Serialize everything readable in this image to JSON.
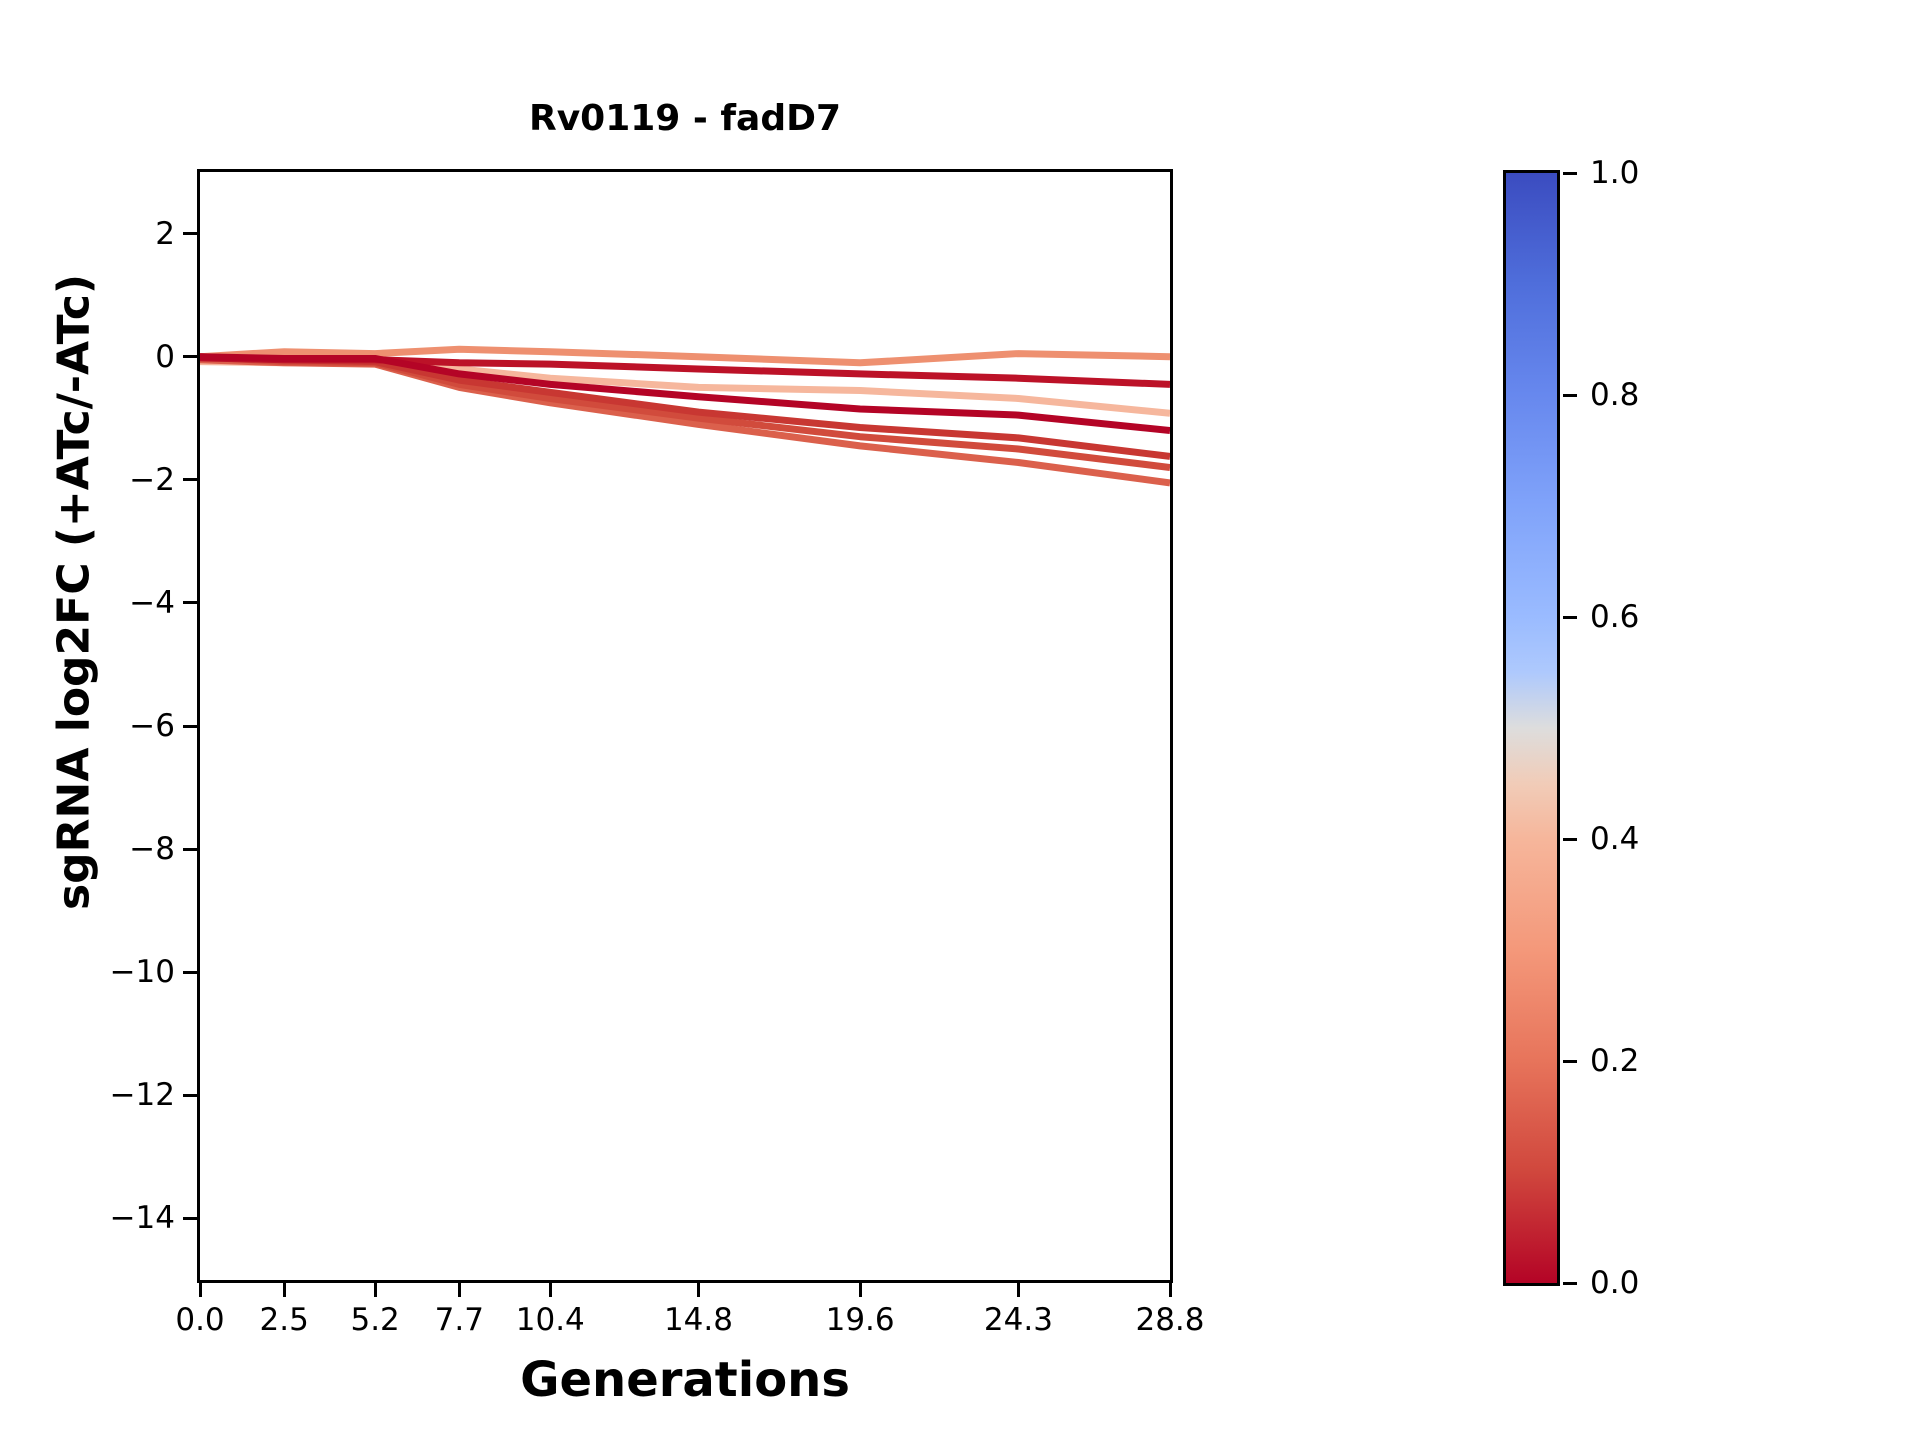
{
  "chart_data": {
    "type": "line",
    "title": "Rv0119 - fadD7",
    "xlabel": "Generations",
    "ylabel": "sgRNA log2FC (+ATc/-ATc)",
    "x": [
      0.0,
      2.5,
      5.2,
      7.7,
      10.4,
      14.8,
      19.6,
      24.3,
      28.8
    ],
    "xlim": [
      0,
      28.8
    ],
    "ylim": [
      -15,
      3
    ],
    "grid": false,
    "xticks": {
      "values": [
        0.0,
        2.5,
        5.2,
        7.7,
        10.4,
        14.8,
        19.6,
        24.3,
        28.8
      ],
      "labels": [
        "0.0",
        "2.5",
        "5.2",
        "7.7",
        "10.4",
        "14.8",
        "19.6",
        "24.3",
        "28.8"
      ]
    },
    "yticks": {
      "values": [
        2,
        0,
        -2,
        -4,
        -6,
        -8,
        -10,
        -12,
        -14
      ],
      "labels": [
        "2",
        "0",
        "−2",
        "−4",
        "−6",
        "−8",
        "−10",
        "−12",
        "−14"
      ]
    },
    "series": [
      {
        "color_value": 0.62,
        "color": "#F6B79D",
        "values": [
          -0.08,
          -0.1,
          -0.08,
          -0.2,
          -0.35,
          -0.5,
          -0.55,
          -0.68,
          -0.92
        ]
      },
      {
        "color_value": 0.7,
        "color": "#EE9070",
        "values": [
          0.0,
          0.08,
          0.05,
          0.12,
          0.08,
          0.0,
          -0.1,
          0.05,
          0.0
        ]
      },
      {
        "color_value": 0.8,
        "color": "#DB604C",
        "values": [
          -0.05,
          -0.1,
          -0.12,
          -0.5,
          -0.75,
          -1.1,
          -1.45,
          -1.72,
          -2.05
        ]
      },
      {
        "color_value": 0.85,
        "color": "#D14B3C",
        "values": [
          0.0,
          -0.08,
          -0.1,
          -0.45,
          -0.68,
          -1.0,
          -1.3,
          -1.5,
          -1.8
        ]
      },
      {
        "color_value": 0.9,
        "color": "#C83732",
        "values": [
          0.0,
          -0.05,
          -0.08,
          -0.38,
          -0.58,
          -0.9,
          -1.15,
          -1.32,
          -1.62
        ]
      },
      {
        "color_value": 0.95,
        "color": "#BC1228",
        "values": [
          -0.02,
          -0.05,
          -0.05,
          -0.1,
          -0.12,
          -0.2,
          -0.28,
          -0.35,
          -0.45
        ]
      },
      {
        "color_value": 1.0,
        "color": "#B40426",
        "values": [
          0.0,
          -0.03,
          -0.03,
          -0.28,
          -0.45,
          -0.65,
          -0.85,
          -0.95,
          -1.2
        ]
      }
    ],
    "colorbar": {
      "min": 0.0,
      "max": 1.0,
      "colormap": "coolwarm",
      "ticks": {
        "values": [
          1.0,
          0.8,
          0.6,
          0.4,
          0.2,
          0.0
        ],
        "labels": [
          "1.0",
          "0.8",
          "0.6",
          "0.4",
          "0.2",
          "0.0"
        ]
      },
      "gradient_stops": [
        {
          "pos": 0.0,
          "color": "#3B4CC0"
        },
        {
          "pos": 0.1,
          "color": "#4F6EDB"
        },
        {
          "pos": 0.2,
          "color": "#6788EE"
        },
        {
          "pos": 0.3,
          "color": "#80A3FA"
        },
        {
          "pos": 0.4,
          "color": "#9ABBFF"
        },
        {
          "pos": 0.45,
          "color": "#AEC9FD"
        },
        {
          "pos": 0.5,
          "color": "#DDDDDD"
        },
        {
          "pos": 0.55,
          "color": "#F1CCB8"
        },
        {
          "pos": 0.6,
          "color": "#F6B69B"
        },
        {
          "pos": 0.7,
          "color": "#F4987A"
        },
        {
          "pos": 0.8,
          "color": "#E7745B"
        },
        {
          "pos": 0.9,
          "color": "#D0473D"
        },
        {
          "pos": 1.0,
          "color": "#B40426"
        }
      ]
    }
  }
}
